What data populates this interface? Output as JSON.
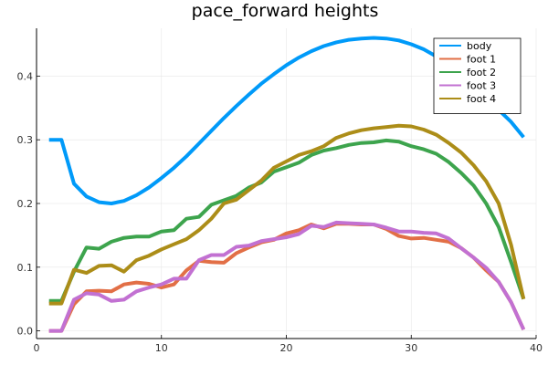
{
  "chart_data": {
    "type": "line",
    "title": "pace_forward heights",
    "xlabel": "",
    "ylabel": "",
    "xlim": [
      0,
      40
    ],
    "ylim": [
      -0.012,
      0.475
    ],
    "xticks": [
      0,
      10,
      20,
      30,
      40
    ],
    "yticks": [
      0.0,
      0.1,
      0.2,
      0.3,
      0.4
    ],
    "xtick_labels": [
      "0",
      "10",
      "20",
      "30",
      "40"
    ],
    "ytick_labels": [
      "0.0",
      "0.1",
      "0.2",
      "0.3",
      "0.4"
    ],
    "grid": true,
    "legend_position": "top-right",
    "x": [
      1,
      2,
      3,
      4,
      5,
      6,
      7,
      8,
      9,
      10,
      11,
      12,
      13,
      14,
      15,
      16,
      17,
      18,
      19,
      20,
      21,
      22,
      23,
      24,
      25,
      26,
      27,
      28,
      29,
      30,
      31,
      32,
      33,
      34,
      35,
      36,
      37,
      38,
      39
    ],
    "series": [
      {
        "name": "body",
        "color": "#009af9",
        "values": [
          0.3,
          0.3,
          0.231,
          0.211,
          0.202,
          0.2,
          0.204,
          0.213,
          0.225,
          0.24,
          0.256,
          0.274,
          0.294,
          0.314,
          0.334,
          0.353,
          0.371,
          0.388,
          0.403,
          0.417,
          0.429,
          0.439,
          0.447,
          0.453,
          0.457,
          0.459,
          0.46,
          0.459,
          0.456,
          0.45,
          0.442,
          0.431,
          0.418,
          0.402,
          0.384,
          0.365,
          0.347,
          0.328,
          0.304
        ]
      },
      {
        "name": "foot 1",
        "color": "#e26f46",
        "values": [
          0.0,
          0.0,
          0.042,
          0.062,
          0.063,
          0.062,
          0.073,
          0.076,
          0.074,
          0.068,
          0.073,
          0.095,
          0.11,
          0.108,
          0.107,
          0.122,
          0.131,
          0.139,
          0.143,
          0.153,
          0.158,
          0.167,
          0.161,
          0.168,
          0.168,
          0.167,
          0.167,
          0.16,
          0.149,
          0.145,
          0.146,
          0.143,
          0.14,
          0.13,
          0.115,
          0.095,
          0.077,
          0.045,
          0.002
        ]
      },
      {
        "name": "foot 2",
        "color": "#3da44d",
        "values": [
          0.047,
          0.047,
          0.093,
          0.131,
          0.129,
          0.14,
          0.146,
          0.148,
          0.148,
          0.156,
          0.158,
          0.176,
          0.179,
          0.198,
          0.205,
          0.212,
          0.225,
          0.233,
          0.25,
          0.257,
          0.264,
          0.276,
          0.283,
          0.287,
          0.292,
          0.295,
          0.296,
          0.299,
          0.297,
          0.29,
          0.285,
          0.278,
          0.265,
          0.248,
          0.228,
          0.2,
          0.163,
          0.108,
          0.05
        ]
      },
      {
        "name": "foot 3",
        "color": "#c271d2",
        "values": [
          0.0,
          0.0,
          0.049,
          0.059,
          0.057,
          0.047,
          0.049,
          0.062,
          0.068,
          0.073,
          0.082,
          0.082,
          0.111,
          0.119,
          0.119,
          0.132,
          0.134,
          0.141,
          0.144,
          0.147,
          0.152,
          0.165,
          0.163,
          0.17,
          0.169,
          0.168,
          0.167,
          0.162,
          0.156,
          0.156,
          0.154,
          0.153,
          0.145,
          0.13,
          0.115,
          0.099,
          0.077,
          0.045,
          0.002
        ]
      },
      {
        "name": "foot 4",
        "color": "#ac8d18",
        "values": [
          0.043,
          0.043,
          0.096,
          0.091,
          0.102,
          0.103,
          0.093,
          0.111,
          0.118,
          0.128,
          0.136,
          0.144,
          0.158,
          0.176,
          0.2,
          0.206,
          0.221,
          0.236,
          0.256,
          0.266,
          0.276,
          0.282,
          0.29,
          0.303,
          0.31,
          0.315,
          0.318,
          0.32,
          0.322,
          0.321,
          0.316,
          0.308,
          0.295,
          0.28,
          0.26,
          0.235,
          0.2,
          0.135,
          0.05
        ]
      }
    ]
  }
}
